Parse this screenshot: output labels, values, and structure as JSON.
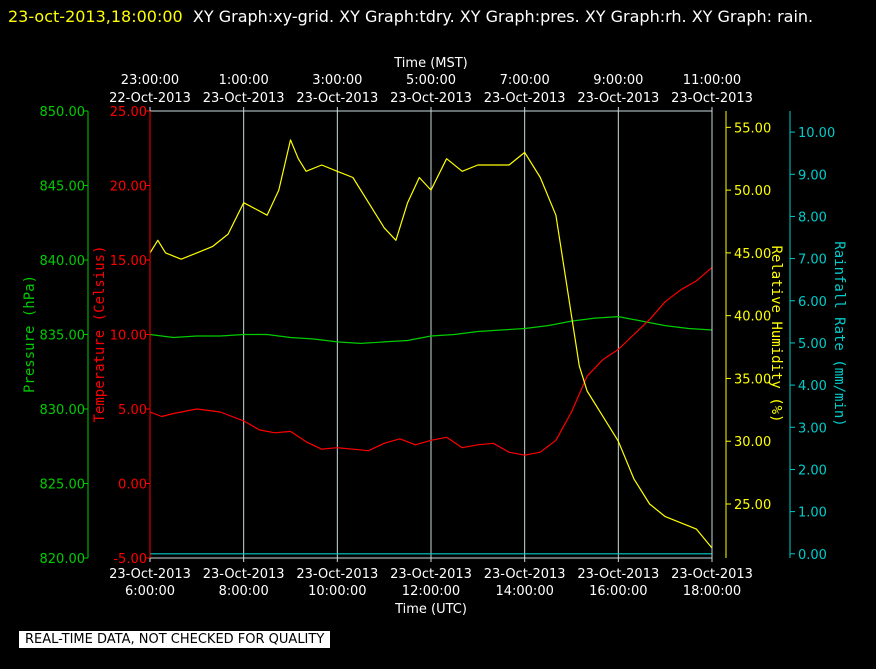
{
  "header": {
    "timestamp": "23-oct-2013,18:00:00",
    "titles": "XY Graph:xy-grid.  XY Graph:tdry.  XY Graph:pres.  XY Graph:rh.  XY Graph: rain."
  },
  "footer": {
    "note": "REAL-TIME DATA, NOT CHECKED FOR QUALITY"
  },
  "colors": {
    "background": "#000000",
    "grid": "#c8dcdc",
    "pressure": "#00cc00",
    "temperature": "#ff0000",
    "humidity": "#ffff00",
    "rain": "#00cccc",
    "text": "#ffffff"
  },
  "chart_data": {
    "type": "line",
    "grid": "vertical lines at every 2 hours",
    "x_top": {
      "label": "Time (MST)",
      "ticks": [
        {
          "time": "23:00:00",
          "date": "22-Oct-2013"
        },
        {
          "time": "1:00:00",
          "date": "23-Oct-2013"
        },
        {
          "time": "3:00:00",
          "date": "23-Oct-2013"
        },
        {
          "time": "5:00:00",
          "date": "23-Oct-2013"
        },
        {
          "time": "7:00:00",
          "date": "23-Oct-2013"
        },
        {
          "time": "9:00:00",
          "date": "23-Oct-2013"
        },
        {
          "time": "11:00:00",
          "date": "23-Oct-2013"
        }
      ]
    },
    "x_bottom": {
      "label": "Time (UTC)",
      "range": [
        "2013-10-23 06:00",
        "2013-10-23 18:00"
      ],
      "ticks": [
        {
          "date": "23-Oct-2013",
          "time": "6:00:00"
        },
        {
          "date": "23-Oct-2013",
          "time": "8:00:00"
        },
        {
          "date": "23-Oct-2013",
          "time": "10:00:00"
        },
        {
          "date": "23-Oct-2013",
          "time": "12:00:00"
        },
        {
          "date": "23-Oct-2013",
          "time": "14:00:00"
        },
        {
          "date": "23-Oct-2013",
          "time": "16:00:00"
        },
        {
          "date": "23-Oct-2013",
          "time": "18:00:00"
        }
      ]
    },
    "axes": {
      "pressure": {
        "label": "Pressure (hPa)",
        "range": [
          820,
          850
        ],
        "ticks": [
          "850.00",
          "845.00",
          "840.00",
          "835.00",
          "830.00",
          "825.00",
          "820.00"
        ]
      },
      "temperature": {
        "label": "Temperature (Celsius)",
        "range": [
          -5,
          25
        ],
        "ticks": [
          "25.00",
          "20.00",
          "15.00",
          "10.00",
          "5.00",
          "0.00",
          "-5.00"
        ]
      },
      "humidity": {
        "label": "Relative Humidity (%)",
        "range": [
          20.7,
          56.3
        ],
        "ticks": [
          "55.00",
          "50.00",
          "45.00",
          "40.00",
          "35.00",
          "30.00",
          "25.00"
        ]
      },
      "rain": {
        "label": "Rainfall Rate (mm/min)",
        "range": [
          -0.1,
          10.5
        ],
        "ticks": [
          "10.00",
          "9.00",
          "8.00",
          "7.00",
          "6.00",
          "5.00",
          "4.00",
          "3.00",
          "2.00",
          "1.00",
          "0.00"
        ]
      }
    },
    "series": [
      {
        "name": "pres",
        "axis": "pressure",
        "x": [
          "2013-10-23 06:00",
          "2013-10-23 06:30",
          "2013-10-23 07:00",
          "2013-10-23 07:30",
          "2013-10-23 08:00",
          "2013-10-23 08:30",
          "2013-10-23 09:00",
          "2013-10-23 09:30",
          "2013-10-23 10:00",
          "2013-10-23 10:30",
          "2013-10-23 11:00",
          "2013-10-23 11:30",
          "2013-10-23 12:00",
          "2013-10-23 12:30",
          "2013-10-23 13:00",
          "2013-10-23 13:30",
          "2013-10-23 14:00",
          "2013-10-23 14:30",
          "2013-10-23 15:00",
          "2013-10-23 15:30",
          "2013-10-23 16:00",
          "2013-10-23 16:30",
          "2013-10-23 17:00",
          "2013-10-23 17:30",
          "2013-10-23 18:00"
        ],
        "y": [
          835.0,
          834.8,
          834.9,
          834.9,
          835.0,
          835.0,
          834.8,
          834.7,
          834.5,
          834.4,
          834.5,
          834.6,
          834.9,
          835.0,
          835.2,
          835.3,
          835.4,
          835.6,
          835.9,
          836.1,
          836.2,
          835.9,
          835.6,
          835.4,
          835.3
        ]
      },
      {
        "name": "tdry",
        "axis": "temperature",
        "x": [
          "2013-10-23 06:00",
          "2013-10-23 06:15",
          "2013-10-23 06:30",
          "2013-10-23 07:00",
          "2013-10-23 07:30",
          "2013-10-23 08:00",
          "2013-10-23 08:20",
          "2013-10-23 08:40",
          "2013-10-23 09:00",
          "2013-10-23 09:20",
          "2013-10-23 09:40",
          "2013-10-23 10:00",
          "2013-10-23 10:20",
          "2013-10-23 10:40",
          "2013-10-23 11:00",
          "2013-10-23 11:20",
          "2013-10-23 11:40",
          "2013-10-23 12:00",
          "2013-10-23 12:20",
          "2013-10-23 12:40",
          "2013-10-23 13:00",
          "2013-10-23 13:20",
          "2013-10-23 13:40",
          "2013-10-23 14:00",
          "2013-10-23 14:20",
          "2013-10-23 14:40",
          "2013-10-23 15:00",
          "2013-10-23 15:20",
          "2013-10-23 15:40",
          "2013-10-23 16:00",
          "2013-10-23 16:20",
          "2013-10-23 16:40",
          "2013-10-23 17:00",
          "2013-10-23 17:20",
          "2013-10-23 17:40",
          "2013-10-23 18:00"
        ],
        "y": [
          4.8,
          4.5,
          4.7,
          5.0,
          4.8,
          4.2,
          3.6,
          3.4,
          3.5,
          2.8,
          2.3,
          2.4,
          2.3,
          2.2,
          2.7,
          3.0,
          2.6,
          2.9,
          3.1,
          2.4,
          2.6,
          2.7,
          2.1,
          1.9,
          2.1,
          2.9,
          4.8,
          7.2,
          8.3,
          9.0,
          10.0,
          11.0,
          12.2,
          13.0,
          13.6,
          14.5
        ]
      },
      {
        "name": "rh",
        "axis": "humidity",
        "x": [
          "2013-10-23 06:00",
          "2013-10-23 06:10",
          "2013-10-23 06:20",
          "2013-10-23 06:40",
          "2013-10-23 07:00",
          "2013-10-23 07:20",
          "2013-10-23 07:40",
          "2013-10-23 08:00",
          "2013-10-23 08:15",
          "2013-10-23 08:30",
          "2013-10-23 08:45",
          "2013-10-23 09:00",
          "2013-10-23 09:10",
          "2013-10-23 09:20",
          "2013-10-23 09:40",
          "2013-10-23 10:00",
          "2013-10-23 10:20",
          "2013-10-23 10:40",
          "2013-10-23 11:00",
          "2013-10-23 11:15",
          "2013-10-23 11:30",
          "2013-10-23 11:45",
          "2013-10-23 12:00",
          "2013-10-23 12:20",
          "2013-10-23 12:40",
          "2013-10-23 13:00",
          "2013-10-23 13:20",
          "2013-10-23 13:40",
          "2013-10-23 14:00",
          "2013-10-23 14:20",
          "2013-10-23 14:40",
          "2013-10-23 15:00",
          "2013-10-23 15:10",
          "2013-10-23 15:20",
          "2013-10-23 15:40",
          "2013-10-23 16:00",
          "2013-10-23 16:20",
          "2013-10-23 16:40",
          "2013-10-23 17:00",
          "2013-10-23 17:20",
          "2013-10-23 17:40",
          "2013-10-23 18:00"
        ],
        "y": [
          45.0,
          46.0,
          45.0,
          44.5,
          45.0,
          45.5,
          46.5,
          49.0,
          48.5,
          48.0,
          50.0,
          54.0,
          52.5,
          51.5,
          52.0,
          51.5,
          51.0,
          49.0,
          47.0,
          46.0,
          49.0,
          51.0,
          50.0,
          52.5,
          51.5,
          52.0,
          52.0,
          52.0,
          53.0,
          51.0,
          48.0,
          40.0,
          36.0,
          34.0,
          32.0,
          30.0,
          27.0,
          25.0,
          24.0,
          23.5,
          23.0,
          21.5
        ]
      },
      {
        "name": "rain",
        "axis": "rain",
        "x": [
          "2013-10-23 06:00",
          "2013-10-23 18:00"
        ],
        "y": [
          0.0,
          0.0
        ]
      }
    ]
  }
}
